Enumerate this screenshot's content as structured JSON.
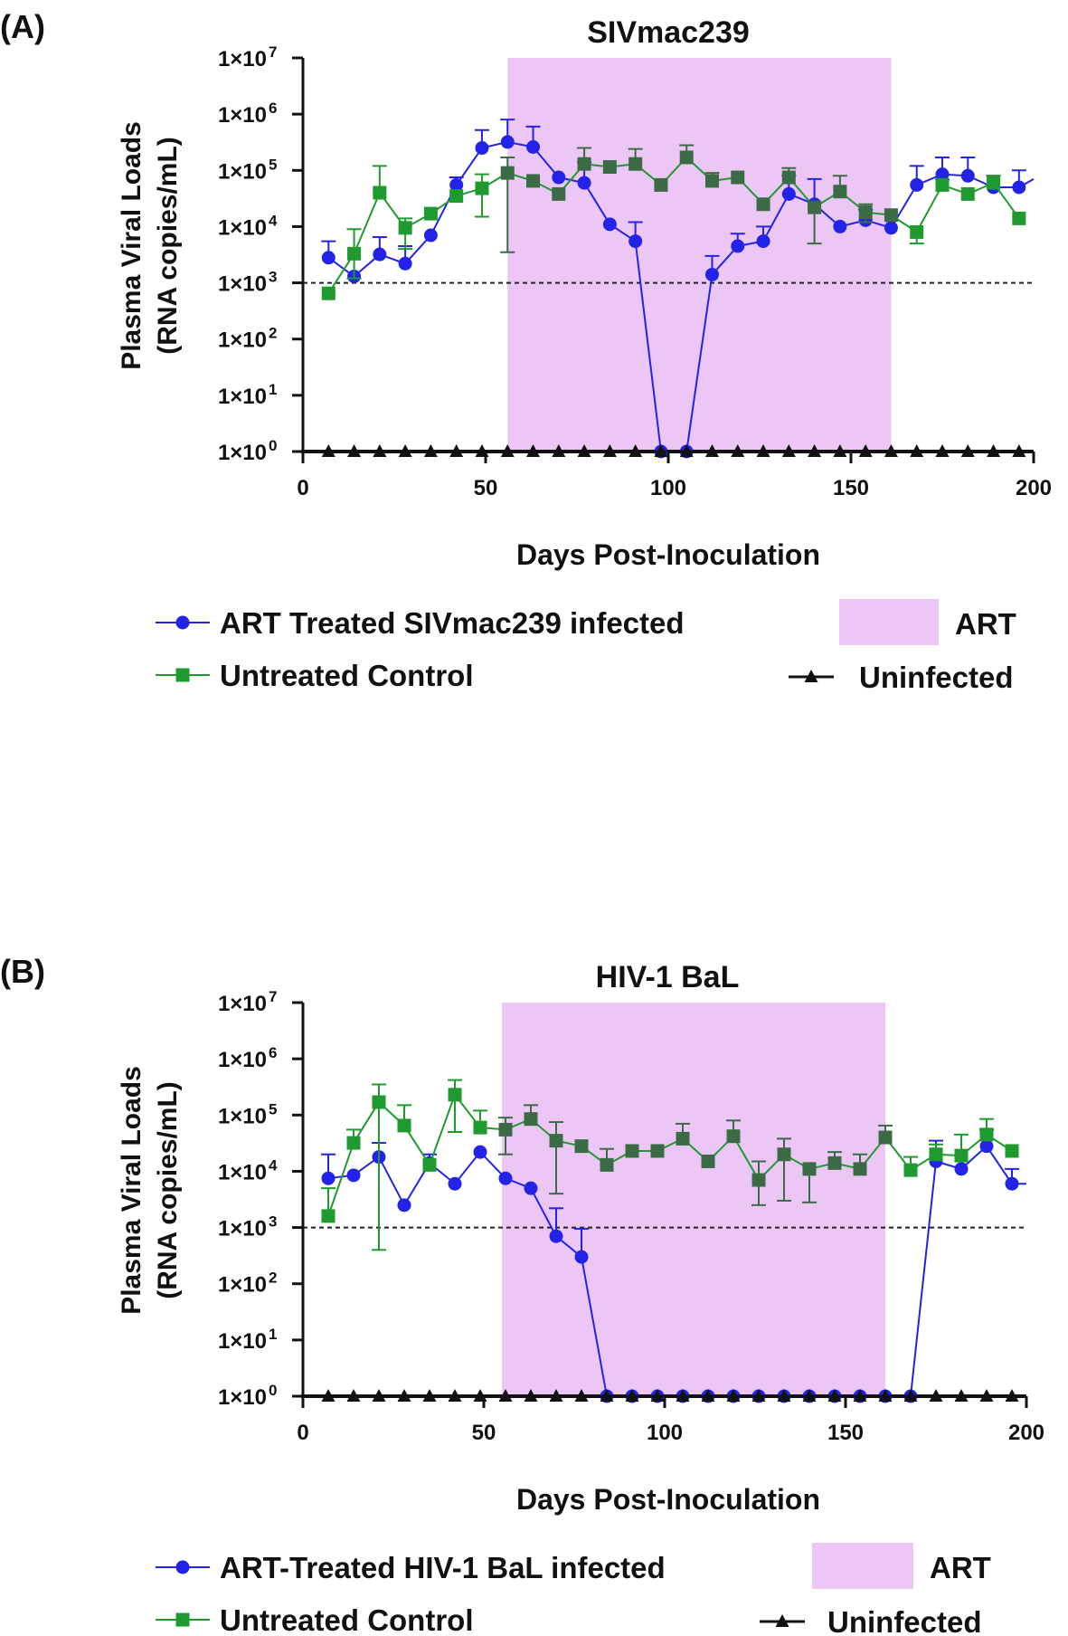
{
  "chart_data": [
    {
      "type": "line",
      "panel_label": "(A)",
      "title": "SIVmac239",
      "xlabel": "Days Post-Inoculation",
      "ylabel_line1": "Plasma Viral Loads",
      "ylabel_line2": "(RNA  copies/mL)",
      "yscale": "log10",
      "xlim": [
        0,
        200
      ],
      "ylim": [
        1,
        10000000
      ],
      "x_ticks": [
        "0",
        "50",
        "100",
        "150",
        "200"
      ],
      "y_ticks": [
        {
          "base": "1×10",
          "exp": "0"
        },
        {
          "base": "1×10",
          "exp": "1"
        },
        {
          "base": "1×10",
          "exp": "2"
        },
        {
          "base": "1×10",
          "exp": "3"
        },
        {
          "base": "1×10",
          "exp": "4"
        },
        {
          "base": "1×10",
          "exp": "5"
        },
        {
          "base": "1×10",
          "exp": "6"
        },
        {
          "base": "1×10",
          "exp": "7"
        }
      ],
      "threshold": 1000,
      "art_window": [
        56,
        161
      ],
      "series": [
        {
          "name": "ART Treated SIVmac239 infected",
          "marker": "circle",
          "color": "#2323e8",
          "x": [
            7,
            14,
            21,
            28,
            35,
            42,
            49,
            56,
            63,
            70,
            77,
            84,
            91,
            98,
            105,
            112,
            119,
            126,
            133,
            140,
            147,
            154,
            161,
            168,
            175,
            182,
            189,
            196,
            200
          ],
          "y": [
            2800,
            1300,
            3200,
            2200,
            7000,
            55000,
            250000,
            320000,
            260000,
            75000,
            60000,
            11000,
            5500,
            1,
            1,
            1400,
            4500,
            5500,
            38000,
            25000,
            10000,
            13000,
            9500,
            55000,
            85000,
            80000,
            50000,
            50000,
            70000
          ],
          "err_up": [
            5500,
            null,
            6500,
            4500,
            null,
            75000,
            520000,
            800000,
            600000,
            null,
            140000,
            null,
            12000,
            null,
            null,
            3000,
            7500,
            10000,
            80000,
            70000,
            null,
            20000,
            null,
            120000,
            170000,
            170000,
            80000,
            100000,
            null
          ]
        },
        {
          "name": "Untreated Control",
          "marker": "square",
          "color": "#1f9a2e",
          "x": [
            7,
            14,
            21,
            28,
            35,
            42,
            49,
            56,
            63,
            70,
            77,
            84,
            91,
            98,
            105,
            112,
            119,
            126,
            133,
            140,
            147,
            154,
            161,
            168,
            175,
            182,
            189,
            196
          ],
          "y": [
            650,
            3300,
            40000,
            9500,
            17000,
            35000,
            48000,
            90000,
            65000,
            38000,
            130000,
            115000,
            130000,
            55000,
            170000,
            65000,
            75000,
            25000,
            75000,
            22000,
            42000,
            18000,
            16000,
            8000,
            55000,
            38000,
            60000,
            14000
          ],
          "err_up": [
            null,
            9000,
            120000,
            14000,
            null,
            null,
            85000,
            170000,
            null,
            null,
            250000,
            null,
            240000,
            null,
            280000,
            90000,
            null,
            null,
            110000,
            null,
            80000,
            25000,
            null,
            null,
            70000,
            null,
            80000,
            null
          ],
          "err_lo": [
            null,
            1200,
            null,
            4000,
            null,
            null,
            15000,
            3500,
            null,
            null,
            null,
            null,
            null,
            null,
            null,
            null,
            null,
            null,
            null,
            5000,
            null,
            12000,
            null,
            5000,
            null,
            null,
            null,
            null
          ]
        },
        {
          "name": "Uninfected",
          "marker": "triangle",
          "color": "#111111",
          "x": [
            7,
            14,
            21,
            28,
            35,
            42,
            49,
            56,
            63,
            70,
            77,
            84,
            91,
            98,
            105,
            112,
            119,
            126,
            133,
            140,
            147,
            154,
            161,
            168,
            175,
            182,
            189,
            196
          ],
          "y": [
            1,
            1,
            1,
            1,
            1,
            1,
            1,
            1,
            1,
            1,
            1,
            1,
            1,
            1,
            1,
            1,
            1,
            1,
            1,
            1,
            1,
            1,
            1,
            1,
            1,
            1,
            1,
            1
          ]
        }
      ],
      "legend": {
        "art_label": "ART"
      }
    },
    {
      "type": "line",
      "panel_label": "(B)",
      "title": "HIV-1 BaL",
      "xlabel": "Days Post-Inoculation",
      "ylabel_line1": "Plasma Viral Loads",
      "ylabel_line2": "(RNA  copies/mL)",
      "yscale": "log10",
      "xlim": [
        0,
        200
      ],
      "ylim": [
        1,
        10000000
      ],
      "x_ticks": [
        "0",
        "50",
        "100",
        "150",
        "200"
      ],
      "y_ticks": [
        {
          "base": "1×10",
          "exp": "0"
        },
        {
          "base": "1×10",
          "exp": "1"
        },
        {
          "base": "1×10",
          "exp": "2"
        },
        {
          "base": "1×10",
          "exp": "3"
        },
        {
          "base": "1×10",
          "exp": "4"
        },
        {
          "base": "1×10",
          "exp": "5"
        },
        {
          "base": "1×10",
          "exp": "6"
        },
        {
          "base": "1×10",
          "exp": "7"
        }
      ],
      "threshold": 1000,
      "art_window": [
        55,
        161
      ],
      "series": [
        {
          "name": "ART-Treated HIV-1 BaL infected",
          "marker": "circle",
          "color": "#2323e8",
          "x": [
            7,
            14,
            21,
            28,
            35,
            42,
            49,
            56,
            63,
            70,
            77,
            84,
            91,
            98,
            105,
            112,
            119,
            126,
            133,
            140,
            147,
            154,
            161,
            168,
            175,
            182,
            189,
            196,
            200
          ],
          "y": [
            7500,
            8500,
            18000,
            2500,
            14000,
            6000,
            22000,
            7500,
            5000,
            700,
            300,
            1,
            1,
            1,
            1,
            1,
            1,
            1,
            1,
            1,
            1,
            1,
            1,
            1,
            15000,
            11000,
            28000,
            6000,
            6000
          ],
          "err_up": [
            20000,
            null,
            32000,
            null,
            20000,
            null,
            null,
            null,
            null,
            2200,
            950,
            null,
            null,
            null,
            null,
            null,
            null,
            null,
            null,
            null,
            null,
            null,
            null,
            null,
            35000,
            null,
            55000,
            11000,
            null
          ]
        },
        {
          "name": "Untreated Control",
          "marker": "square",
          "color": "#1f9a2e",
          "x": [
            7,
            14,
            21,
            28,
            35,
            42,
            49,
            56,
            63,
            70,
            77,
            84,
            91,
            98,
            105,
            112,
            119,
            126,
            133,
            140,
            147,
            154,
            161,
            168,
            175,
            182,
            189,
            196
          ],
          "y": [
            1600,
            32000,
            170000,
            65000,
            13000,
            230000,
            60000,
            55000,
            85000,
            35000,
            28000,
            13000,
            23000,
            23000,
            38000,
            15000,
            42000,
            7000,
            20000,
            11000,
            14000,
            11000,
            40000,
            10500,
            20000,
            19000,
            45000,
            23000
          ],
          "err_up": [
            5000,
            55000,
            350000,
            150000,
            null,
            420000,
            120000,
            90000,
            150000,
            75000,
            null,
            25000,
            null,
            null,
            70000,
            null,
            80000,
            15000,
            38000,
            null,
            22000,
            20000,
            65000,
            18000,
            30000,
            45000,
            85000,
            null
          ],
          "err_lo": [
            null,
            null,
            400,
            null,
            null,
            50000,
            null,
            20000,
            null,
            4000,
            null,
            null,
            null,
            null,
            null,
            null,
            null,
            2500,
            3000,
            2800,
            null,
            null,
            null,
            null,
            null,
            null,
            null,
            null
          ]
        },
        {
          "name": "Uninfected",
          "marker": "triangle",
          "color": "#111111",
          "x": [
            7,
            14,
            21,
            28,
            35,
            42,
            49,
            56,
            63,
            70,
            77,
            84,
            91,
            98,
            105,
            112,
            119,
            126,
            133,
            140,
            147,
            154,
            161,
            168,
            175,
            182,
            189,
            196
          ],
          "y": [
            1,
            1,
            1,
            1,
            1,
            1,
            1,
            1,
            1,
            1,
            1,
            1,
            1,
            1,
            1,
            1,
            1,
            1,
            1,
            1,
            1,
            1,
            1,
            1,
            1,
            1,
            1,
            1
          ]
        }
      ],
      "legend": {
        "art_label": "ART"
      }
    }
  ],
  "colors": {
    "art_shade": "#ecc7f5",
    "treated": "#2323e8",
    "control": "#1f9a2e",
    "control_in_art": "#3b6b45",
    "uninfected": "#111111"
  }
}
